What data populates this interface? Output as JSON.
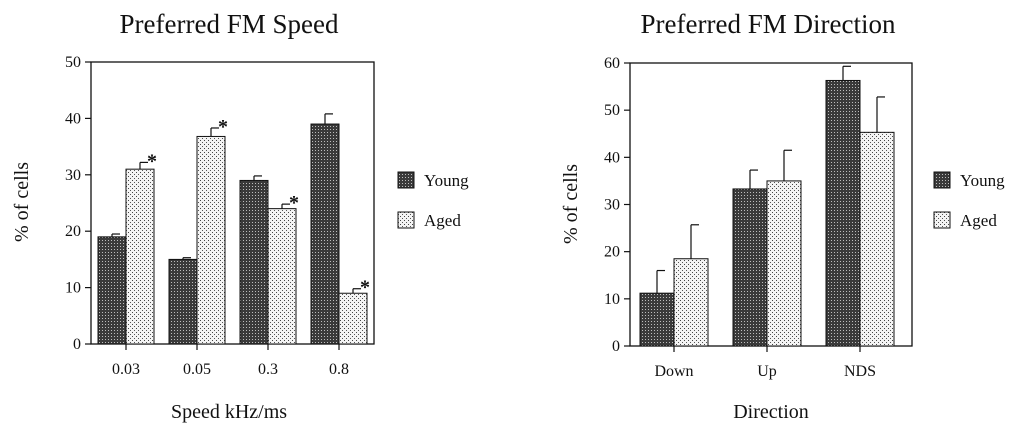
{
  "chart_data": [
    {
      "type": "bar",
      "title": "Preferred FM Speed",
      "xlabel": "Speed kHz/ms",
      "ylabel": "% of cells",
      "categories": [
        "0.03",
        "0.05",
        "0.3",
        "0.8"
      ],
      "ylim": [
        0,
        50
      ],
      "yticks": [
        0,
        10,
        20,
        30,
        40,
        50
      ],
      "series": [
        {
          "name": "Young",
          "values": [
            19,
            15,
            29,
            39
          ],
          "errors": [
            0.5,
            0.3,
            0.8,
            1.8
          ],
          "pattern": "dark-dots"
        },
        {
          "name": "Aged",
          "values": [
            31,
            36.8,
            24,
            9
          ],
          "errors": [
            1.2,
            1.5,
            0.8,
            0.8
          ],
          "pattern": "light-dots"
        }
      ],
      "significance": [
        {
          "series": "Aged",
          "category": "0.03",
          "symbol": "*"
        },
        {
          "series": "Aged",
          "category": "0.05",
          "symbol": "*"
        },
        {
          "series": "Aged",
          "category": "0.3",
          "symbol": "*"
        },
        {
          "series": "Aged",
          "category": "0.8",
          "symbol": "*"
        }
      ],
      "legend": {
        "placement": "right"
      },
      "grid": false
    },
    {
      "type": "bar",
      "title": "Preferred FM Direction",
      "xlabel": "Direction",
      "ylabel": "% of cells",
      "categories": [
        "Down",
        "Up",
        "NDS"
      ],
      "ylim": [
        0,
        60
      ],
      "yticks": [
        0,
        10,
        20,
        30,
        40,
        50,
        60
      ],
      "series": [
        {
          "name": "Young",
          "values": [
            11.2,
            33.3,
            56.3
          ],
          "errors": [
            4.8,
            4.0,
            3.0
          ],
          "pattern": "dark-dots"
        },
        {
          "name": "Aged",
          "values": [
            18.5,
            35,
            45.3
          ],
          "errors": [
            7.2,
            6.5,
            7.5
          ],
          "pattern": "light-dots"
        }
      ],
      "legend": {
        "placement": "right"
      },
      "grid": false
    }
  ]
}
